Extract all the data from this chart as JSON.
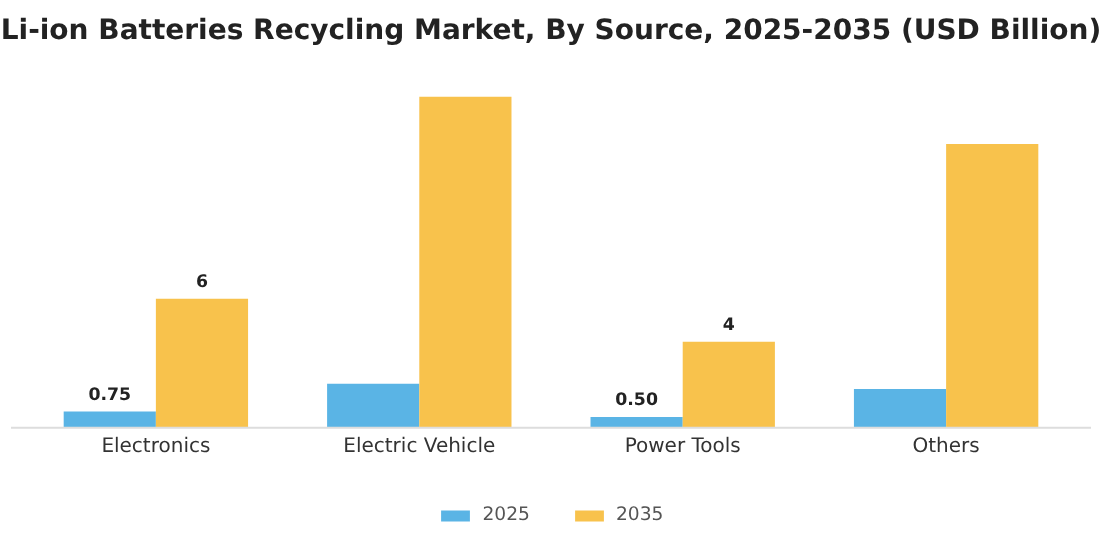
{
  "chart_data": {
    "type": "bar",
    "title": "Li-ion Batteries Recycling Market, By Source, 2025-2035 (USD Billion)",
    "categories": [
      "Electronics",
      "Electric Vehicle",
      "Power Tools",
      "Others"
    ],
    "series": [
      {
        "name": "2025",
        "color": "#5ab4e5",
        "values": [
          0.75,
          2.05,
          0.5,
          1.8
        ],
        "value_labels": [
          "0.75",
          null,
          "0.50",
          null
        ]
      },
      {
        "name": "2035",
        "color": "#f8c24c",
        "values": [
          6,
          15.4,
          4,
          13.2
        ],
        "value_labels": [
          "6",
          null,
          "4",
          null
        ]
      }
    ],
    "legend": "bottom"
  }
}
